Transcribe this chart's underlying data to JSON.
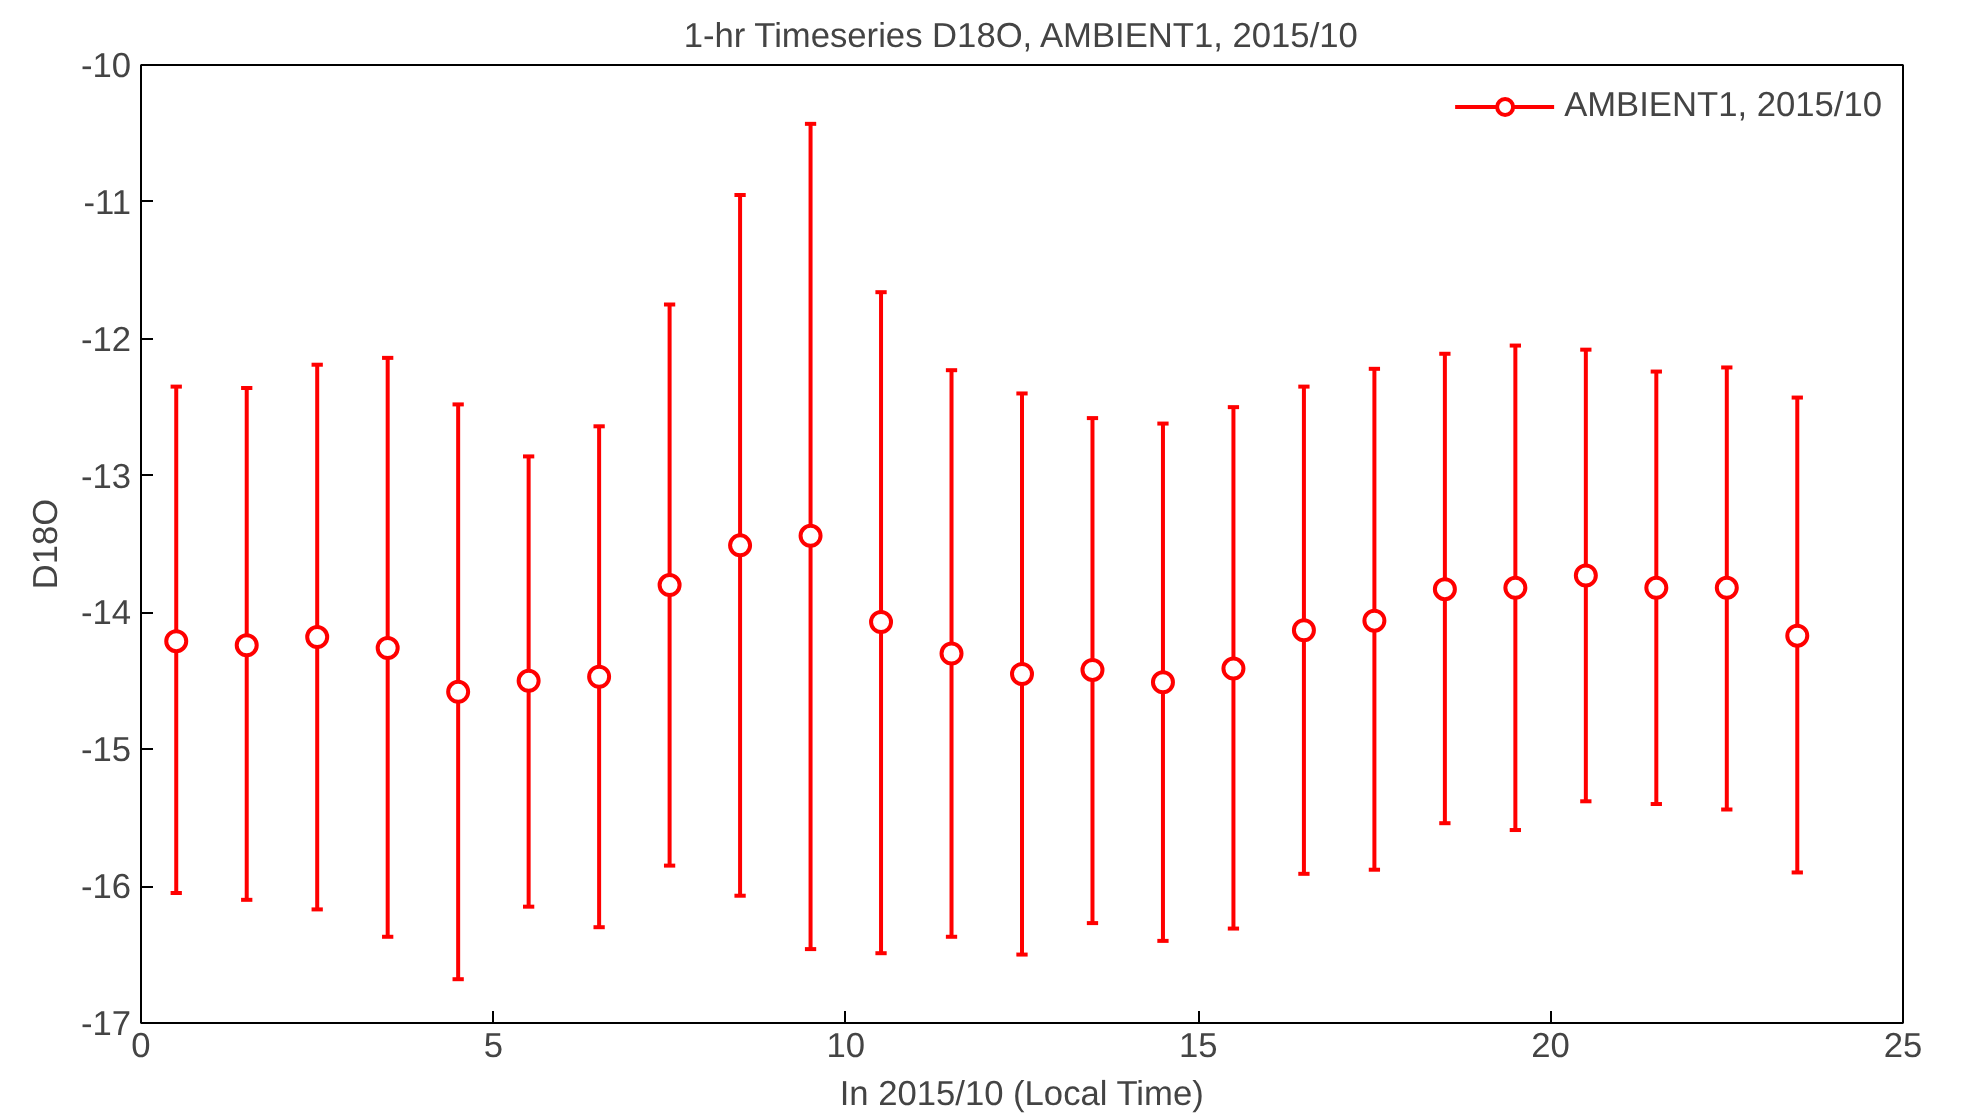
{
  "chart_data": {
    "type": "scatter",
    "title": "1-hr Timeseries D18O, AMBIENT1, 2015/10",
    "xlabel": "In 2015/10 (Local Time)",
    "ylabel": "D18O",
    "x": [
      0.5,
      1.5,
      2.5,
      3.5,
      4.5,
      5.5,
      6.5,
      7.5,
      8.5,
      9.5,
      10.5,
      11.5,
      12.5,
      13.5,
      14.5,
      15.5,
      16.5,
      17.5,
      18.5,
      19.5,
      20.5,
      21.5,
      22.5,
      23.5
    ],
    "series": [
      {
        "name": "AMBIENT1, 2015/10",
        "color": "#ff0000",
        "values": [
          -14.21,
          -14.24,
          -14.18,
          -14.26,
          -14.58,
          -14.5,
          -14.47,
          -13.8,
          -13.51,
          -13.44,
          -14.07,
          -14.3,
          -14.45,
          -14.42,
          -14.51,
          -14.41,
          -14.13,
          -14.06,
          -13.83,
          -13.82,
          -13.73,
          -13.82,
          -13.82,
          -14.17
        ],
        "errors": [
          [
            -16.05,
            -12.35
          ],
          [
            -16.1,
            -12.36
          ],
          [
            -16.17,
            -12.19
          ],
          [
            -16.37,
            -12.14
          ],
          [
            -16.68,
            -12.48
          ],
          [
            -16.15,
            -12.86
          ],
          [
            -16.3,
            -12.64
          ],
          [
            -15.85,
            -11.75
          ],
          [
            -16.07,
            -10.95
          ],
          [
            -16.46,
            -10.43
          ],
          [
            -16.49,
            -11.66
          ],
          [
            -16.37,
            -12.23
          ],
          [
            -16.5,
            -12.4
          ],
          [
            -16.27,
            -12.58
          ],
          [
            -16.4,
            -12.62
          ],
          [
            -16.31,
            -12.5
          ],
          [
            -15.91,
            -12.35
          ],
          [
            -15.88,
            -12.22
          ],
          [
            -15.54,
            -12.11
          ],
          [
            -15.59,
            -12.05
          ],
          [
            -15.38,
            -12.08
          ],
          [
            -15.4,
            -12.24
          ],
          [
            -15.44,
            -12.21
          ],
          [
            -15.9,
            -12.43
          ]
        ]
      }
    ],
    "xlim": [
      0,
      25
    ],
    "xticks": [
      0,
      5,
      10,
      15,
      20,
      25
    ],
    "ylim": [
      -17,
      -10
    ],
    "yticks": [
      -17,
      -16,
      -15,
      -14,
      -13,
      -12,
      -11,
      -10
    ],
    "marker": "circle",
    "legend": "top right",
    "grid": false
  }
}
